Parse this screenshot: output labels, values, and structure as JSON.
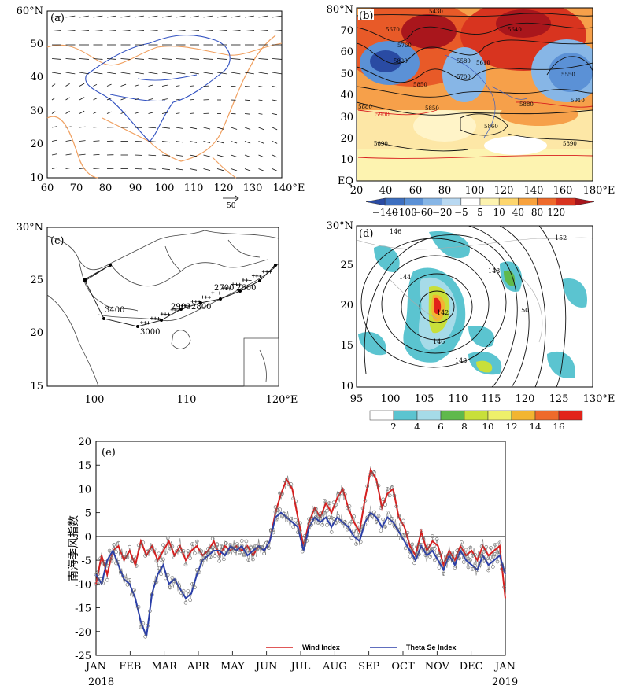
{
  "figure": {
    "panel_a": {
      "label": "(a)",
      "x_ticks": [
        "60",
        "70",
        "80",
        "90",
        "100",
        "110",
        "120",
        "130",
        "140°E"
      ],
      "y_ticks": [
        "60°N",
        "50",
        "40",
        "30",
        "20",
        "10"
      ],
      "ref_vector_label": "50",
      "field": "wind vectors",
      "xlim": [
        60,
        140
      ],
      "ylim": [
        10,
        60
      ]
    },
    "panel_b": {
      "label": "(b)",
      "x_ticks": [
        "20",
        "40",
        "60",
        "80",
        "100",
        "120",
        "140",
        "160",
        "180°E"
      ],
      "y_ticks": [
        "80°N",
        "70",
        "60",
        "50",
        "40",
        "30",
        "20",
        "10",
        "EQ"
      ],
      "xlim": [
        20,
        180
      ],
      "ylim": [
        0,
        80
      ],
      "contour_labels": [
        "5430",
        "5460",
        "5550",
        "5580",
        "5610",
        "5640",
        "5670",
        "5700",
        "5730",
        "5760",
        "5790",
        "5820",
        "5850",
        "5860",
        "5880",
        "5890",
        "5900",
        "5910"
      ],
      "colorbar_ticks": [
        "−140",
        "−100",
        "−60",
        "−20",
        "−5",
        "5",
        "10",
        "40",
        "80",
        "120"
      ],
      "colorbar_colors": [
        "#2a4ba3",
        "#3d6fc0",
        "#5b91d6",
        "#87b6e6",
        "#b9d9f2",
        "#ffffff",
        "#fdf3b0",
        "#fdd66e",
        "#f8a23d",
        "#ee6a2b",
        "#d8341f",
        "#a9161c"
      ]
    },
    "panel_c": {
      "label": "(c)",
      "x_ticks": [
        "100",
        "110",
        "120°E"
      ],
      "y_ticks": [
        "30°N",
        "25",
        "20",
        "15"
      ],
      "xlim": [
        95,
        120
      ],
      "ylim": [
        15,
        30
      ],
      "track_labels": [
        "3400",
        "3000",
        "2900",
        "2800",
        "2700",
        "2600"
      ]
    },
    "panel_d": {
      "label": "(d)",
      "x_ticks": [
        "95",
        "100",
        "105",
        "110",
        "115",
        "120",
        "125",
        "130°E"
      ],
      "y_ticks": [
        "30°N",
        "25",
        "20",
        "15",
        "10"
      ],
      "xlim": [
        95,
        130
      ],
      "ylim": [
        10,
        30
      ],
      "contour_labels": [
        "146",
        "144",
        "142",
        "146",
        "148",
        "148",
        "150",
        "152"
      ],
      "colorbar_ticks": [
        "2",
        "4",
        "6",
        "8",
        "10",
        "12",
        "14",
        "16"
      ],
      "colorbar_colors": [
        "#ffffff",
        "#5bc4d0",
        "#a6dbe8",
        "#5fb94c",
        "#c8df3a",
        "#eef06a",
        "#f2b531",
        "#ee6a2b",
        "#e2231a"
      ]
    },
    "panel_e": {
      "label": "(e)",
      "ylabel": "南海季风指数",
      "legend_wind": "Wind Index",
      "legend_theta": "Theta Se Index",
      "year_start": "2018",
      "year_end": "2019"
    }
  },
  "chart_data": [
    {
      "type": "quiver",
      "panel": "a",
      "xlim": [
        60,
        140
      ],
      "ylim": [
        10,
        60
      ],
      "reference_vector": 50
    },
    {
      "type": "contour",
      "panel": "b",
      "xlim": [
        20,
        180
      ],
      "ylim": [
        0,
        80
      ],
      "colorbar": [
        -140,
        -100,
        -60,
        -20,
        -5,
        5,
        10,
        40,
        80,
        120
      ]
    },
    {
      "type": "line",
      "panel": "c",
      "title": "track",
      "xlim": [
        95,
        120
      ],
      "ylim": [
        15,
        30
      ]
    },
    {
      "type": "contour",
      "panel": "d",
      "xlim": [
        95,
        130
      ],
      "ylim": [
        10,
        30
      ],
      "colorbar": [
        2,
        4,
        6,
        8,
        10,
        12,
        14,
        16
      ]
    },
    {
      "type": "line",
      "panel": "e",
      "ylabel": "南海季风指数",
      "ylim": [
        -25,
        20
      ],
      "yticks": [
        -25,
        -20,
        -15,
        -10,
        -5,
        0,
        5,
        10,
        15,
        20
      ],
      "xticks": [
        "JAN",
        "FEB",
        "MAR",
        "APR",
        "MAY",
        "JUN",
        "JUL",
        "AUG",
        "SEP",
        "OCT",
        "NOV",
        "DEC",
        "JAN"
      ],
      "series": [
        {
          "name": "Wind Index",
          "color": "#d62020",
          "x_day": [
            0,
            5,
            10,
            15,
            20,
            25,
            30,
            35,
            40,
            45,
            50,
            55,
            60,
            65,
            70,
            75,
            80,
            85,
            90,
            95,
            100,
            105,
            110,
            115,
            120,
            125,
            130,
            135,
            140,
            145,
            150,
            155,
            160,
            165,
            170,
            175,
            180,
            185,
            190,
            195,
            200,
            205,
            210,
            215,
            220,
            225,
            230,
            235,
            240,
            245,
            250,
            255,
            260,
            265,
            270,
            275,
            280,
            285,
            290,
            295,
            300,
            305,
            310,
            315,
            320,
            325,
            330,
            335,
            340,
            345,
            350,
            355,
            360,
            365
          ],
          "values": [
            -10,
            -4,
            -8,
            -3,
            -2,
            -5,
            -3,
            -6,
            -1,
            -4,
            -2,
            -5,
            -3,
            -1,
            -4,
            -2,
            -5,
            -3,
            -2,
            -4,
            -3,
            -1,
            -4,
            -2,
            -3,
            -2,
            -3,
            -2,
            -4,
            -2,
            -3,
            -1,
            5,
            9,
            12,
            10,
            4,
            -2,
            3,
            6,
            4,
            7,
            5,
            8,
            10,
            6,
            3,
            1,
            8,
            14,
            12,
            6,
            9,
            10,
            4,
            2,
            -2,
            -4,
            1,
            -3,
            -1,
            -2,
            -6,
            -3,
            -5,
            -2,
            -4,
            -3,
            -5,
            -2,
            -4,
            -3,
            -2,
            -13
          ]
        },
        {
          "name": "Theta Se Index",
          "color": "#2b3fa8",
          "x_day": [
            0,
            5,
            10,
            15,
            20,
            25,
            30,
            35,
            40,
            45,
            50,
            55,
            60,
            65,
            70,
            75,
            80,
            85,
            90,
            95,
            100,
            105,
            110,
            115,
            120,
            125,
            130,
            135,
            140,
            145,
            150,
            155,
            160,
            165,
            170,
            175,
            180,
            185,
            190,
            195,
            200,
            205,
            210,
            215,
            220,
            225,
            230,
            235,
            240,
            245,
            250,
            255,
            260,
            265,
            270,
            275,
            280,
            285,
            290,
            295,
            300,
            305,
            310,
            315,
            320,
            325,
            330,
            335,
            340,
            345,
            350,
            355,
            360,
            365
          ],
          "values": [
            -8,
            -10,
            -5,
            -3,
            -6,
            -9,
            -10,
            -13,
            -18,
            -21,
            -12,
            -8,
            -6,
            -10,
            -9,
            -11,
            -13,
            -12,
            -8,
            -5,
            -4,
            -3,
            -3,
            -4,
            -2,
            -3,
            -2,
            -4,
            -3,
            -2,
            -3,
            -1,
            4,
            5,
            4,
            3,
            2,
            -3,
            2,
            4,
            3,
            4,
            2,
            4,
            3,
            2,
            0,
            -1,
            3,
            5,
            4,
            2,
            4,
            3,
            1,
            -1,
            -3,
            -5,
            -2,
            -4,
            -3,
            -5,
            -7,
            -4,
            -6,
            -3,
            -5,
            -6,
            -7,
            -4,
            -6,
            -5,
            -4,
            -8
          ]
        }
      ]
    }
  ]
}
